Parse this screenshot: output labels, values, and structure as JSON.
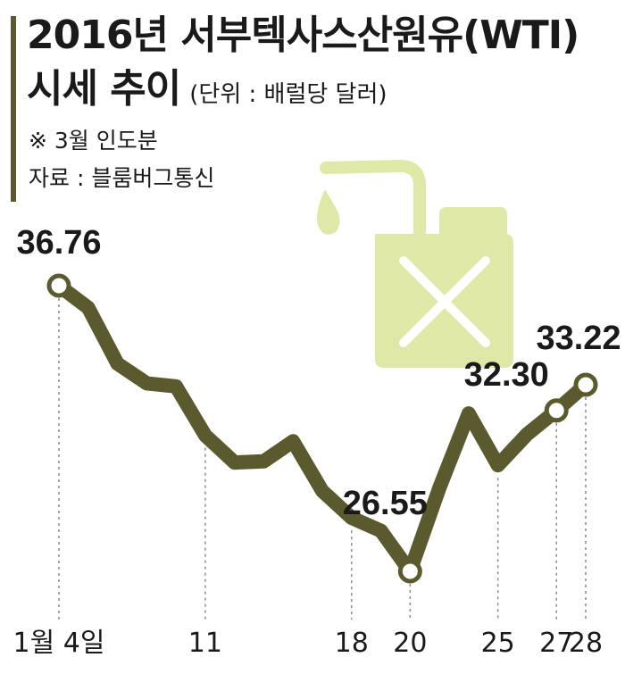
{
  "header": {
    "title_line1": "2016년 서부텍사스산원유(WTI)",
    "title_line2": "시세 추이",
    "unit": "(단위 : 배럴당 달러)",
    "note": "※ 3월 인도분",
    "source": "자료 : 블룸버그통신"
  },
  "colors": {
    "line": "#5a5a2e",
    "accent_bar": "#5a5a2e",
    "marker_fill": "#ffffff",
    "illustration": "#dfe8a6",
    "text": "#1a1a1a"
  },
  "illustration": {
    "icon": "jerry-can-icon"
  },
  "chart_data": {
    "type": "line",
    "x_tick_labels": [
      "1월 4일",
      "11",
      "18",
      "20",
      "25",
      "27",
      "28"
    ],
    "series": [
      {
        "values": [
          {
            "day": 4,
            "value": 36.76
          },
          {
            "day": 5,
            "value": 35.97
          },
          {
            "day": 6,
            "value": 33.97
          },
          {
            "day": 7,
            "value": 33.27
          },
          {
            "day": 8,
            "value": 33.16
          },
          {
            "day": 11,
            "value": 31.41
          },
          {
            "day": 12,
            "value": 30.44
          },
          {
            "day": 13,
            "value": 30.48
          },
          {
            "day": 14,
            "value": 31.2
          },
          {
            "day": 15,
            "value": 29.42
          },
          {
            "day": 18,
            "value": 28.46
          },
          {
            "day": 19,
            "value": 28.0
          },
          {
            "day": 20,
            "value": 26.55
          },
          {
            "day": 21,
            "value": 29.53
          },
          {
            "day": 22,
            "value": 32.19
          },
          {
            "day": 25,
            "value": 30.34
          },
          {
            "day": 26,
            "value": 31.45
          },
          {
            "day": 27,
            "value": 32.3
          },
          {
            "day": 28,
            "value": 33.22
          }
        ]
      }
    ],
    "labeled_points": [
      {
        "day": 4,
        "value": 36.76,
        "label": "36.76"
      },
      {
        "day": 20,
        "value": 26.55,
        "label": "26.55"
      },
      {
        "day": 27,
        "value": 32.3,
        "label": "32.30"
      },
      {
        "day": 28,
        "value": 33.22,
        "label": "33.22"
      }
    ],
    "dashed_guides_at_days": [
      4,
      11,
      18,
      20,
      25,
      27,
      28
    ],
    "grid": false,
    "legend": "none"
  }
}
